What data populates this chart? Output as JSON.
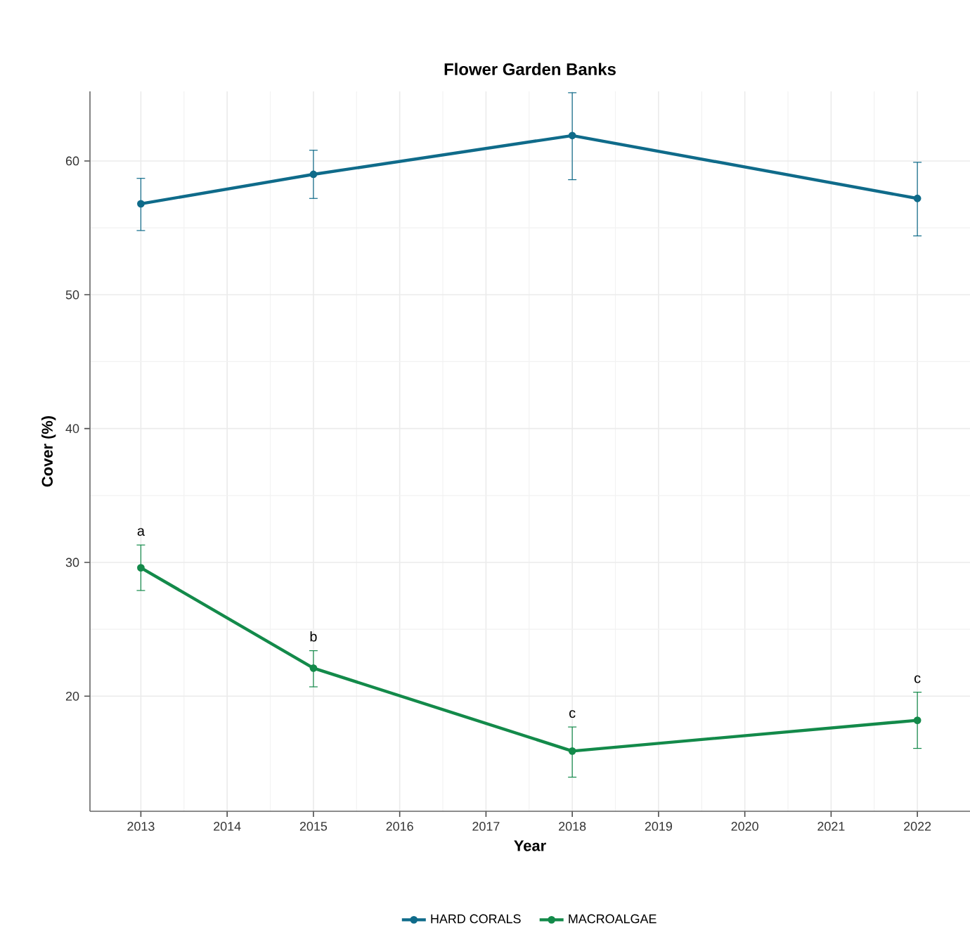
{
  "chart_data": {
    "type": "line",
    "title": "Flower Garden Banks",
    "xlabel": "Year",
    "ylabel": "Cover (%)",
    "x": [
      2013,
      2015,
      2018,
      2022
    ],
    "series": [
      {
        "name": "HARD CORALS",
        "color": "#0f6b8a",
        "values": [
          56.8,
          59.0,
          61.9,
          57.2
        ],
        "errors": [
          [
            54.8,
            58.7
          ],
          [
            57.2,
            60.8
          ],
          [
            58.6,
            65.1
          ],
          [
            54.4,
            59.9
          ]
        ]
      },
      {
        "name": "MACROALGAE",
        "color": "#138a4a",
        "values": [
          29.6,
          22.1,
          15.9,
          18.2
        ],
        "errors": [
          [
            27.9,
            31.3
          ],
          [
            20.7,
            23.4
          ],
          [
            13.95,
            17.7
          ],
          [
            16.1,
            20.3
          ]
        ]
      }
    ],
    "annotations": [
      {
        "text": "a",
        "x": 2013,
        "y": 29.6
      },
      {
        "text": "b",
        "x": 2015,
        "y": 22.1
      },
      {
        "text": "c",
        "x": 2018,
        "y": 15.9
      },
      {
        "text": "c",
        "x": 2022,
        "y": 18.2
      }
    ],
    "xlim": [
      2012.41,
      2022.61
    ],
    "ylim": [
      11.4,
      65.2
    ],
    "xticks": [
      2013,
      2014,
      2015,
      2016,
      2017,
      2018,
      2019,
      2020,
      2021,
      2022
    ],
    "yticks": [
      20,
      30,
      40,
      50,
      60
    ],
    "grid": true,
    "legend": "bottom",
    "marker": "circle",
    "line_style": "solid"
  }
}
